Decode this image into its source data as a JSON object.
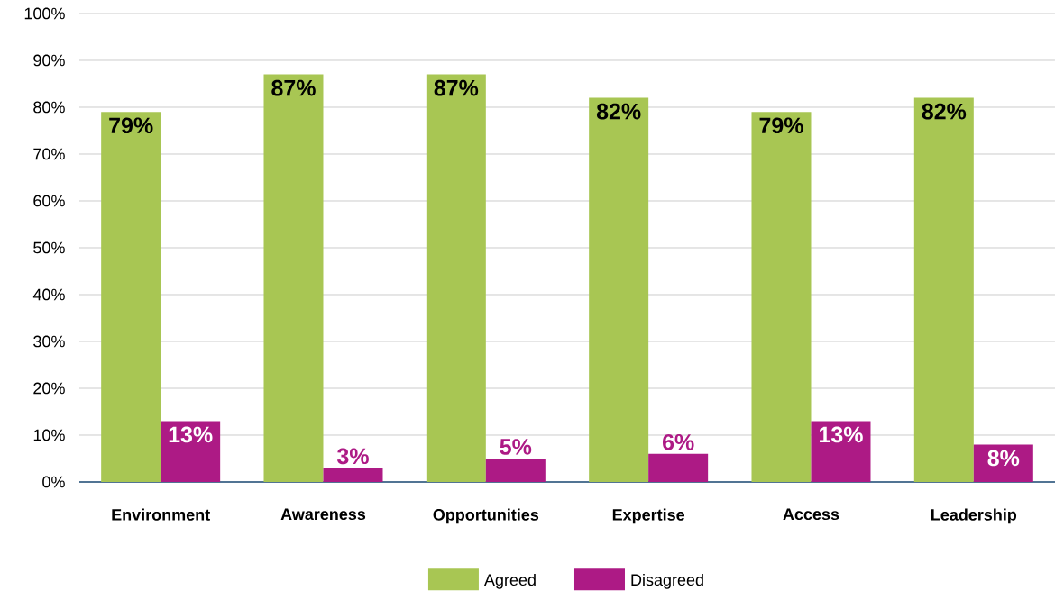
{
  "chart_data": {
    "type": "bar",
    "categories": [
      "Environment",
      "Awareness",
      "Opportunities",
      "Expertise",
      "Access",
      "Leadership"
    ],
    "series": [
      {
        "name": "Agreed",
        "color": "#a8c653",
        "values": [
          79,
          87,
          87,
          82,
          79,
          82
        ],
        "value_labels": [
          "79%",
          "87%",
          "87%",
          "82%",
          "79%",
          "82%"
        ]
      },
      {
        "name": "Disagreed",
        "color": "#ad1a85",
        "values": [
          13,
          3,
          5,
          6,
          13,
          8
        ],
        "value_labels": [
          "13%",
          "3%",
          "5%",
          "6%",
          "13%",
          "8%"
        ]
      }
    ],
    "ylim": [
      0,
      100
    ],
    "yticks": [
      {
        "value": 0,
        "label": "0%"
      },
      {
        "value": 10,
        "label": "10%"
      },
      {
        "value": 20,
        "label": "20%"
      },
      {
        "value": 30,
        "label": "30%"
      },
      {
        "value": 40,
        "label": "40%"
      },
      {
        "value": 50,
        "label": "50%"
      },
      {
        "value": 60,
        "label": "60%"
      },
      {
        "value": 70,
        "label": "70%"
      },
      {
        "value": 80,
        "label": "80%"
      },
      {
        "value": 90,
        "label": "90%"
      },
      {
        "value": 100,
        "label": "100%"
      }
    ],
    "grid": "y",
    "legend": "bottom"
  }
}
